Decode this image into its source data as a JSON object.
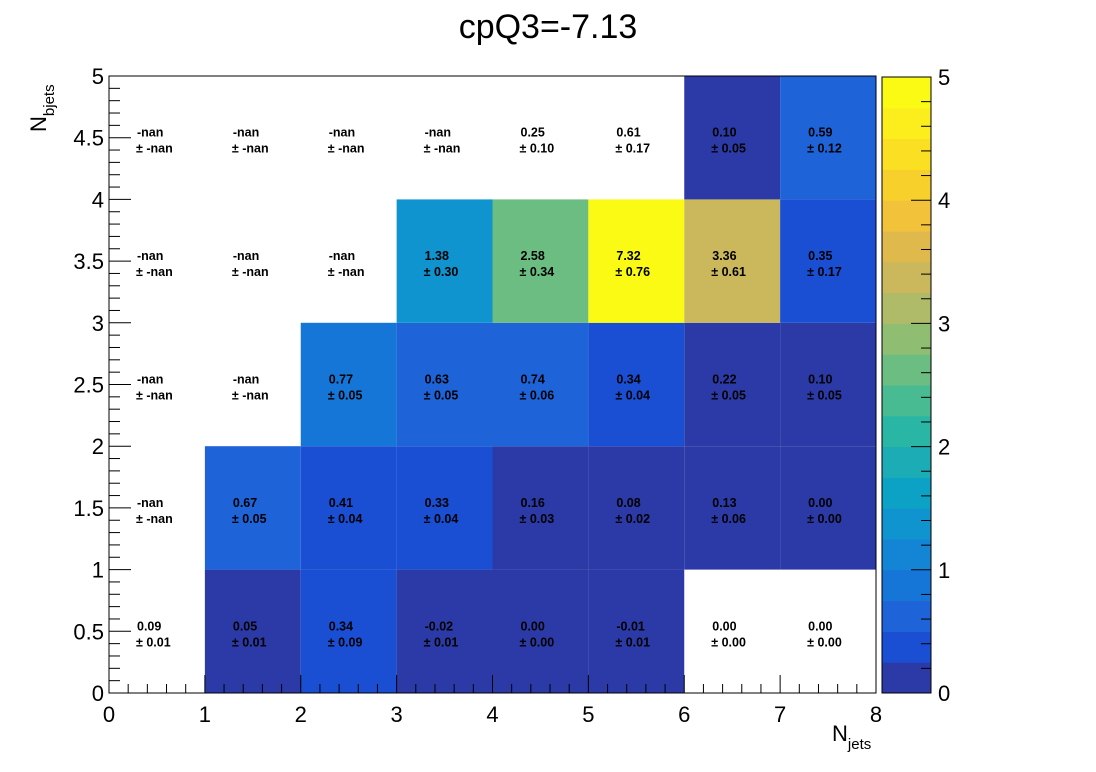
{
  "chart_data": {
    "type": "heatmap",
    "title": "cpQ3=-7.13",
    "xlabel": {
      "main": "N",
      "sub": "jets"
    },
    "ylabel": {
      "main": "N",
      "sub": "bjets"
    },
    "xlim": [
      0,
      8
    ],
    "ylim": [
      0,
      5
    ],
    "zlim": [
      0,
      5
    ],
    "x_ticks": [
      "0",
      "1",
      "2",
      "3",
      "4",
      "5",
      "6",
      "7",
      "8"
    ],
    "y_ticks": [
      "0",
      "0.5",
      "1",
      "1.5",
      "2",
      "2.5",
      "3",
      "3.5",
      "4",
      "4.5",
      "5"
    ],
    "z_ticks": [
      "0",
      "1",
      "2",
      "3",
      "4",
      "5"
    ],
    "x_bin_edges": [
      0,
      1,
      2,
      3,
      4,
      5,
      6,
      7,
      8
    ],
    "y_bin_edges": [
      0,
      1,
      2,
      3,
      4,
      5
    ],
    "cells": [
      {
        "x": 0,
        "y": 0,
        "value": "0.09",
        "error": "± 0.01",
        "z": 0.09
      },
      {
        "x": 1,
        "y": 0,
        "value": "0.05",
        "error": "± 0.01",
        "z": 0.05
      },
      {
        "x": 2,
        "y": 0,
        "value": "0.34",
        "error": "± 0.09",
        "z": 0.34
      },
      {
        "x": 3,
        "y": 0,
        "value": "-0.02",
        "error": "± 0.01",
        "z": -0.02
      },
      {
        "x": 4,
        "y": 0,
        "value": "0.00",
        "error": "± 0.00",
        "z": 0.0
      },
      {
        "x": 5,
        "y": 0,
        "value": "-0.01",
        "error": "± 0.01",
        "z": -0.01
      },
      {
        "x": 6,
        "y": 0,
        "value": "0.00",
        "error": "± 0.00",
        "z": 0.0
      },
      {
        "x": 7,
        "y": 0,
        "value": "0.00",
        "error": "± 0.00",
        "z": 0.0
      },
      {
        "x": 0,
        "y": 1,
        "value": "-nan",
        "error": "± -nan",
        "z": null
      },
      {
        "x": 1,
        "y": 1,
        "value": "0.67",
        "error": "± 0.05",
        "z": 0.67
      },
      {
        "x": 2,
        "y": 1,
        "value": "0.41",
        "error": "± 0.04",
        "z": 0.41
      },
      {
        "x": 3,
        "y": 1,
        "value": "0.33",
        "error": "± 0.04",
        "z": 0.33
      },
      {
        "x": 4,
        "y": 1,
        "value": "0.16",
        "error": "± 0.03",
        "z": 0.16
      },
      {
        "x": 5,
        "y": 1,
        "value": "0.08",
        "error": "± 0.02",
        "z": 0.08
      },
      {
        "x": 6,
        "y": 1,
        "value": "0.13",
        "error": "± 0.06",
        "z": 0.13
      },
      {
        "x": 7,
        "y": 1,
        "value": "0.00",
        "error": "± 0.00",
        "z": 0.0
      },
      {
        "x": 0,
        "y": 2,
        "value": "-nan",
        "error": "± -nan",
        "z": null
      },
      {
        "x": 1,
        "y": 2,
        "value": "-nan",
        "error": "± -nan",
        "z": null
      },
      {
        "x": 2,
        "y": 2,
        "value": "0.77",
        "error": "± 0.05",
        "z": 0.77
      },
      {
        "x": 3,
        "y": 2,
        "value": "0.63",
        "error": "± 0.05",
        "z": 0.63
      },
      {
        "x": 4,
        "y": 2,
        "value": "0.74",
        "error": "± 0.06",
        "z": 0.74
      },
      {
        "x": 5,
        "y": 2,
        "value": "0.34",
        "error": "± 0.04",
        "z": 0.34
      },
      {
        "x": 6,
        "y": 2,
        "value": "0.22",
        "error": "± 0.05",
        "z": 0.22
      },
      {
        "x": 7,
        "y": 2,
        "value": "0.10",
        "error": "± 0.05",
        "z": 0.1
      },
      {
        "x": 0,
        "y": 3,
        "value": "-nan",
        "error": "± -nan",
        "z": null
      },
      {
        "x": 1,
        "y": 3,
        "value": "-nan",
        "error": "± -nan",
        "z": null
      },
      {
        "x": 2,
        "y": 3,
        "value": "-nan",
        "error": "± -nan",
        "z": null
      },
      {
        "x": 3,
        "y": 3,
        "value": "1.38",
        "error": "± 0.30",
        "z": 1.38
      },
      {
        "x": 4,
        "y": 3,
        "value": "2.58",
        "error": "± 0.34",
        "z": 2.58
      },
      {
        "x": 5,
        "y": 3,
        "value": "7.32",
        "error": "± 0.76",
        "z": 7.32
      },
      {
        "x": 6,
        "y": 3,
        "value": "3.36",
        "error": "± 0.61",
        "z": 3.36
      },
      {
        "x": 7,
        "y": 3,
        "value": "0.35",
        "error": "± 0.17",
        "z": 0.35
      },
      {
        "x": 0,
        "y": 4,
        "value": "-nan",
        "error": "± -nan",
        "z": null
      },
      {
        "x": 1,
        "y": 4,
        "value": "-nan",
        "error": "± -nan",
        "z": null
      },
      {
        "x": 2,
        "y": 4,
        "value": "-nan",
        "error": "± -nan",
        "z": null
      },
      {
        "x": 3,
        "y": 4,
        "value": "-nan",
        "error": "± -nan",
        "z": null
      },
      {
        "x": 4,
        "y": 4,
        "value": "0.25",
        "error": "± 0.10",
        "z": 0.25
      },
      {
        "x": 5,
        "y": 4,
        "value": "0.61",
        "error": "± 0.17",
        "z": 0.61
      },
      {
        "x": 6,
        "y": 4,
        "value": "0.10",
        "error": "± 0.05",
        "z": 0.1
      },
      {
        "x": 7,
        "y": 4,
        "value": "0.59",
        "error": "± 0.12",
        "z": 0.59
      }
    ],
    "white_cells": [
      {
        "x": 0,
        "y": 0
      },
      {
        "x": 6,
        "y": 0
      },
      {
        "x": 7,
        "y": 0
      },
      {
        "x": 4,
        "y": 4
      },
      {
        "x": 5,
        "y": 4
      }
    ],
    "palette": [
      "#2b3aa6",
      "#1a4fd3",
      "#1e64d8",
      "#1676d8",
      "#1485d4",
      "#0f94d0",
      "#0ca2c5",
      "#1bacb5",
      "#2ab6a4",
      "#48bb92",
      "#6bbd82",
      "#8fbe73",
      "#afbb68",
      "#cbb85c",
      "#e0b94d",
      "#f2c33a",
      "#f8d02c",
      "#fadf22",
      "#fbee1c",
      "#fafa14"
    ],
    "grid": false,
    "colorbar": "right"
  }
}
